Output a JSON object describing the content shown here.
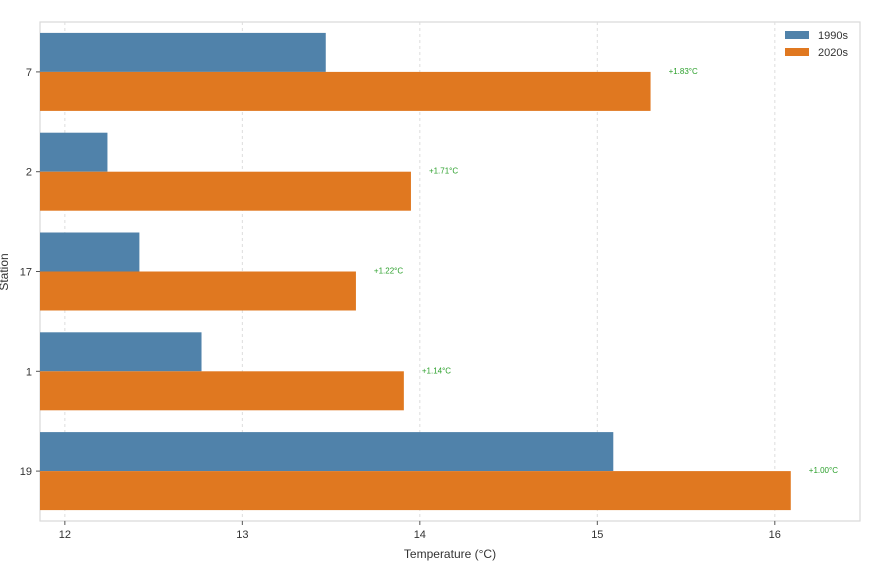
{
  "chart_data": {
    "type": "bar",
    "orientation": "horizontal",
    "title": "",
    "xlabel": "Temperature (°C)",
    "ylabel": "Station",
    "xlim": [
      11.86,
      16.48
    ],
    "xticks": [
      "12",
      "13",
      "14",
      "15",
      "16"
    ],
    "xtick_values": [
      12,
      13,
      14,
      15,
      16
    ],
    "grid": "x, dashed",
    "legend_position": "top-right",
    "categories": [
      "7",
      "2",
      "17",
      "1",
      "19"
    ],
    "series": [
      {
        "name": "1990s",
        "color": "#5082aa",
        "values": [
          13.47,
          12.24,
          12.42,
          12.77,
          15.09
        ]
      },
      {
        "name": "2020s",
        "color": "#e07820",
        "values": [
          15.3,
          13.95,
          13.64,
          13.91,
          16.09
        ]
      }
    ],
    "annotations": [
      "+1.83°C",
      "+1.71°C",
      "+1.22°C",
      "+1.14°C",
      "+1.00°C"
    ],
    "annotation_color": "#2ca02c"
  }
}
